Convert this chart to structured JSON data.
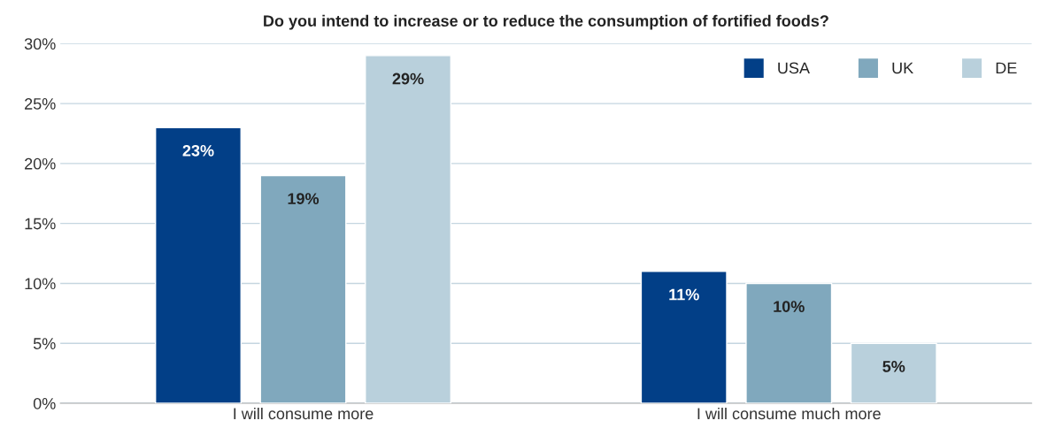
{
  "chart_data": {
    "type": "bar",
    "title": "Do you intend to increase or to reduce the consumption of fortified foods?",
    "categories": [
      "I will consume more",
      "I will consume much more"
    ],
    "series": [
      {
        "name": "USA",
        "color": "#023f87",
        "values": [
          23,
          11
        ],
        "value_labels": [
          "23%",
          "11%"
        ]
      },
      {
        "name": "UK",
        "color": "#80a8bd",
        "values": [
          19,
          10
        ],
        "value_labels": [
          "19%",
          "10%"
        ]
      },
      {
        "name": "DE",
        "color": "#b9d0dc",
        "values": [
          29,
          5
        ],
        "value_labels": [
          "29%",
          "5%"
        ]
      }
    ],
    "ylim": [
      0,
      30
    ],
    "yticks": [
      {
        "value": 0,
        "label": "0%"
      },
      {
        "value": 5,
        "label": "5%"
      },
      {
        "value": 10,
        "label": "10%"
      },
      {
        "value": 15,
        "label": "15%"
      },
      {
        "value": 20,
        "label": "20%"
      },
      {
        "value": 25,
        "label": "25%"
      },
      {
        "value": 30,
        "label": "30%"
      }
    ],
    "grid": "y",
    "legend": "top right"
  }
}
